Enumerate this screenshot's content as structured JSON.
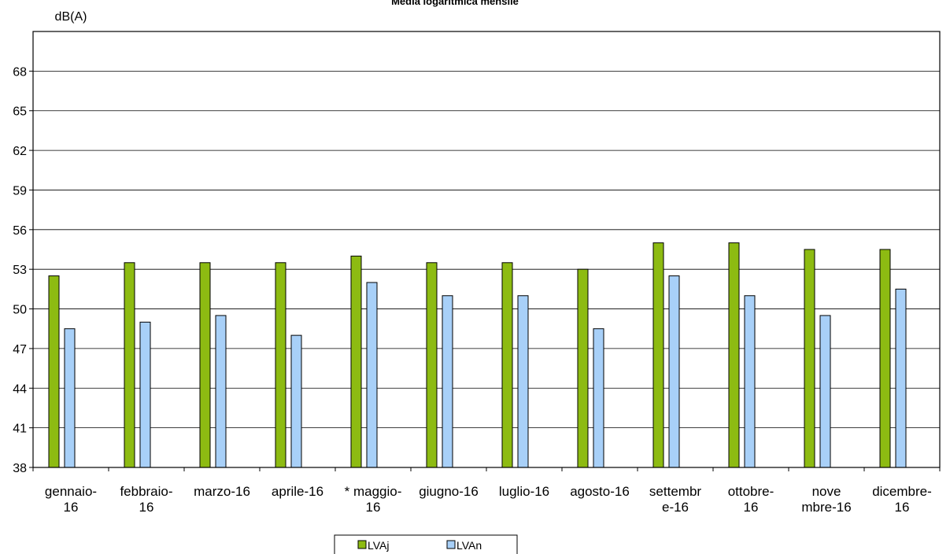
{
  "chart_data": {
    "type": "bar",
    "title": "Media logaritmica mensile",
    "ylabel": "dB(A)",
    "xlabel": "",
    "ylim": [
      38,
      71
    ],
    "yticks": [
      38,
      41,
      44,
      47,
      50,
      53,
      56,
      59,
      62,
      65,
      68
    ],
    "grid": true,
    "legend_position": "bottom",
    "categories": [
      [
        "gennaio-",
        "16"
      ],
      [
        "febbraio-",
        "16"
      ],
      [
        "marzo-16"
      ],
      [
        "aprile-16"
      ],
      [
        "* maggio-",
        "16"
      ],
      [
        "giugno-16"
      ],
      [
        "luglio-16"
      ],
      [
        "agosto-16"
      ],
      [
        "settembr",
        "e-16"
      ],
      [
        "ottobre-",
        "16"
      ],
      [
        "nove",
        "mbre-16"
      ],
      [
        "dicembre-",
        "16"
      ]
    ],
    "series": [
      {
        "name": "LVAj",
        "color": "#8dbb12",
        "values": [
          52.5,
          53.5,
          53.5,
          53.5,
          54.0,
          53.5,
          53.5,
          53.0,
          55.0,
          55.0,
          54.5,
          54.5
        ]
      },
      {
        "name": "LVAn",
        "color": "#a8d0f8",
        "values": [
          48.5,
          49.0,
          49.5,
          48.0,
          52.0,
          51.0,
          51.0,
          48.5,
          52.5,
          51.0,
          49.5,
          51.5
        ]
      }
    ]
  }
}
